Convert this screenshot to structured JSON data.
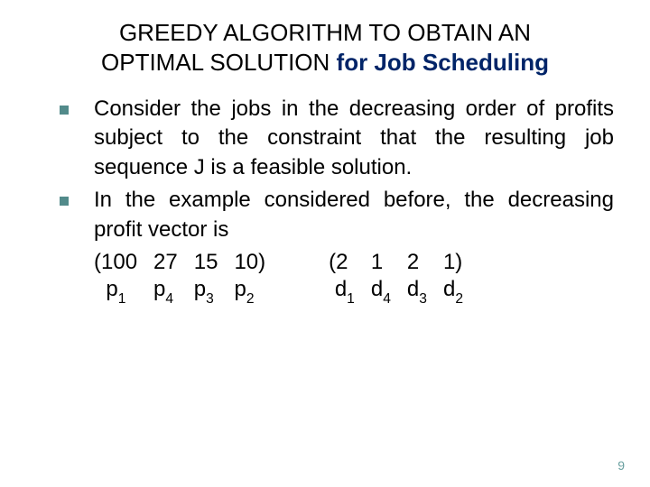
{
  "title": {
    "line1": "GREEDY ALGORITHM TO OBTAIN AN",
    "line2_a": "OPTIMAL SOLUTION ",
    "line2_b": "for Job Scheduling"
  },
  "bullets": {
    "b1": "Consider the jobs in the decreasing order of profits subject to the constraint that the resulting job sequence J is a feasible solution.",
    "b2": "In the example considered before, the decreasing profit vector is"
  },
  "vectors": {
    "profit": {
      "row1": [
        "(100",
        "27",
        "15",
        "10)"
      ],
      "row2_labels": [
        "p",
        "p",
        "p",
        "p"
      ],
      "row2_subs": [
        "1",
        "4",
        "3",
        "2"
      ]
    },
    "deadline": {
      "row1": [
        "(2",
        "1",
        "2",
        "1)"
      ],
      "row2_labels": [
        "d",
        "d",
        "d",
        "d"
      ],
      "row2_subs": [
        "1",
        "4",
        "3",
        "2"
      ]
    }
  },
  "page_number": "9",
  "colors": {
    "navy": "#002468",
    "bullet_square": "#528a8a",
    "pagenum": "#6aa0a0"
  }
}
